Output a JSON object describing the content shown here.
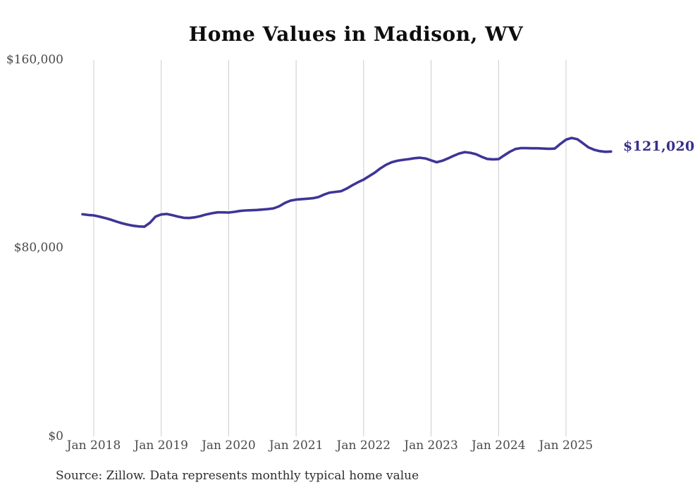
{
  "title": "Home Values in Madison, WV",
  "source_note": "Source: Zillow. Data represents monthly typical home value",
  "colors": {
    "background": "#ffffff",
    "line": "#3e3596",
    "grid": "#cccccc",
    "axis_text": "#4a4a4a",
    "title_text": "#0d0d0d",
    "final_label_text": "#35308c",
    "source_text": "#2e2e2e"
  },
  "chart_data": {
    "type": "line",
    "title": "Home Values in Madison, WV",
    "xlabel": "",
    "ylabel": "",
    "ylim": [
      0,
      160000
    ],
    "y_ticks": [
      "$0",
      "$80,000",
      "$160,000"
    ],
    "x_ticks": [
      "Jan 2018",
      "Jan 2019",
      "Jan 2020",
      "Jan 2021",
      "Jan 2022",
      "Jan 2023",
      "Jan 2024",
      "Jan 2025"
    ],
    "grid": "vertical-only",
    "legend": "none",
    "series_name": "Monthly typical home value",
    "final_value": 121020,
    "final_value_label": "$121,020",
    "x": [
      "2017-11",
      "2017-12",
      "2018-01",
      "2018-02",
      "2018-03",
      "2018-04",
      "2018-05",
      "2018-06",
      "2018-07",
      "2018-08",
      "2018-09",
      "2018-10",
      "2018-11",
      "2018-12",
      "2019-01",
      "2019-02",
      "2019-03",
      "2019-04",
      "2019-05",
      "2019-06",
      "2019-07",
      "2019-08",
      "2019-09",
      "2019-10",
      "2019-11",
      "2019-12",
      "2020-01",
      "2020-02",
      "2020-03",
      "2020-04",
      "2020-05",
      "2020-06",
      "2020-07",
      "2020-08",
      "2020-09",
      "2020-10",
      "2020-11",
      "2020-12",
      "2021-01",
      "2021-02",
      "2021-03",
      "2021-04",
      "2021-05",
      "2021-06",
      "2021-07",
      "2021-08",
      "2021-09",
      "2021-10",
      "2021-11",
      "2021-12",
      "2022-01",
      "2022-02",
      "2022-03",
      "2022-04",
      "2022-05",
      "2022-06",
      "2022-07",
      "2022-08",
      "2022-09",
      "2022-10",
      "2022-11",
      "2022-12",
      "2023-01",
      "2023-02",
      "2023-03",
      "2023-04",
      "2023-05",
      "2023-06",
      "2023-07",
      "2023-08",
      "2023-09",
      "2023-10",
      "2023-11",
      "2023-12",
      "2024-01",
      "2024-02",
      "2024-03",
      "2024-04",
      "2024-05",
      "2024-06",
      "2024-07",
      "2024-08",
      "2024-09",
      "2024-10",
      "2024-11",
      "2024-12",
      "2025-01",
      "2025-02",
      "2025-03",
      "2025-04",
      "2025-05",
      "2025-06",
      "2025-07",
      "2025-08",
      "2025-09"
    ],
    "values": [
      94400,
      94100,
      93900,
      93400,
      92800,
      92100,
      91300,
      90600,
      90000,
      89500,
      89200,
      89100,
      90800,
      93400,
      94300,
      94500,
      94000,
      93400,
      92900,
      92800,
      93100,
      93600,
      94300,
      94800,
      95200,
      95200,
      95100,
      95400,
      95800,
      96000,
      96100,
      96200,
      96400,
      96600,
      96900,
      97800,
      99200,
      100200,
      100600,
      100800,
      101000,
      101200,
      101700,
      102800,
      103600,
      103900,
      104200,
      105300,
      106700,
      108000,
      109100,
      110600,
      112100,
      113900,
      115400,
      116500,
      117100,
      117500,
      117800,
      118200,
      118400,
      118100,
      117300,
      116500,
      117100,
      118100,
      119200,
      120200,
      120800,
      120500,
      119900,
      118800,
      117900,
      117700,
      117800,
      119400,
      120900,
      122100,
      122500,
      122500,
      122400,
      122400,
      122300,
      122200,
      122300,
      124300,
      126100,
      126800,
      126300,
      124600,
      122800,
      121800,
      121200,
      120900,
      121020
    ]
  }
}
